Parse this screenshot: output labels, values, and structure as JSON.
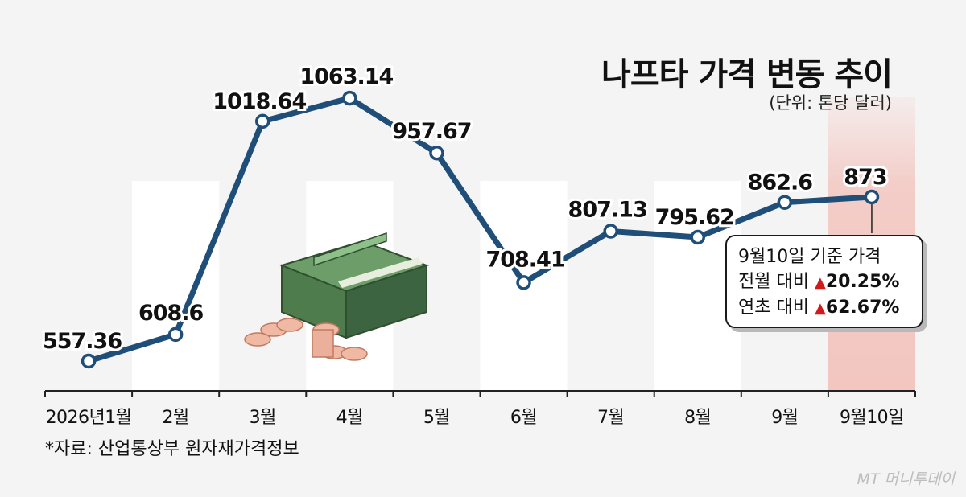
{
  "title": "나프타 가격 변동 추이",
  "subtitle": "(단위: 톤당 달러)",
  "source": "*자료: 산업통상부 원자재가격정보",
  "brand": "MT 머니투데이",
  "colors": {
    "line": "#1f4e79",
    "highlight_band": "#f3c6c0",
    "arrow_up": "#d11a1a"
  },
  "icons": [
    "money-stack-icon",
    "coin-stack-icon"
  ],
  "callout": {
    "title": "9월10일 기준 가격",
    "rows": [
      {
        "label": "전월 대비",
        "arrow": "▲",
        "value": "20.25%"
      },
      {
        "label": "연초 대비",
        "arrow": "▲",
        "value": "62.67%"
      }
    ]
  },
  "chart_data": {
    "type": "line",
    "title": "나프타 가격 변동 추이",
    "unit": "(단위: 톤당 달러)",
    "categories": [
      "2026년1월",
      "2월",
      "3월",
      "4월",
      "5월",
      "6월",
      "7월",
      "8월",
      "9월",
      "9월10일"
    ],
    "values": [
      557.36,
      608.6,
      1018.64,
      1063.14,
      957.67,
      708.41,
      807.13,
      795.62,
      862.6,
      873
    ],
    "labels": [
      "557.36",
      "608.6",
      "1018.64",
      "1063.14",
      "957.67",
      "708.41",
      "807.13",
      "795.62",
      "862.6",
      "873"
    ],
    "highlight_category": "9월10일",
    "grid": false,
    "legend": "none"
  }
}
